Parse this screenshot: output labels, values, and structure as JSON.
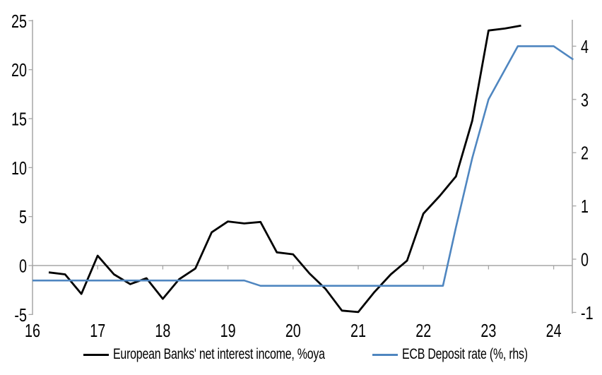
{
  "chart_data": {
    "type": "line",
    "title": "",
    "xlabel": "",
    "ylabel_left": "",
    "ylabel_right": "",
    "x_ticks": [
      16,
      17,
      18,
      19,
      20,
      21,
      22,
      23,
      24
    ],
    "x_tick_labels": [
      "16",
      "17",
      "18",
      "19",
      "20",
      "21",
      "22",
      "23",
      "24"
    ],
    "left_axis": {
      "ticks": [
        -5,
        0,
        5,
        10,
        15,
        20,
        25
      ],
      "ylim": [
        -5,
        25
      ]
    },
    "right_axis": {
      "ticks": [
        -1,
        0,
        1,
        2,
        3,
        4
      ],
      "ylim": [
        -1,
        4.5
      ]
    },
    "grid": "zero-line-only",
    "legend_position": "bottom",
    "axis_color": "#a6a6a6",
    "series": [
      {
        "key": "nii",
        "name": "European Banks' net interest income, %oya",
        "axis": "left",
        "color": "#000000",
        "width": 2.8,
        "points": [
          [
            16.25,
            -0.7
          ],
          [
            16.5,
            -0.9
          ],
          [
            16.75,
            -2.9
          ],
          [
            17.0,
            1.0
          ],
          [
            17.25,
            -0.9
          ],
          [
            17.5,
            -1.9
          ],
          [
            17.75,
            -1.3
          ],
          [
            18.0,
            -3.4
          ],
          [
            18.25,
            -1.4
          ],
          [
            18.5,
            -0.3
          ],
          [
            18.75,
            3.4
          ],
          [
            19.0,
            4.5
          ],
          [
            19.25,
            4.3
          ],
          [
            19.5,
            4.45
          ],
          [
            19.75,
            1.35
          ],
          [
            20.0,
            1.15
          ],
          [
            20.25,
            -0.8
          ],
          [
            20.5,
            -2.4
          ],
          [
            20.75,
            -4.6
          ],
          [
            21.0,
            -4.75
          ],
          [
            21.25,
            -2.7
          ],
          [
            21.5,
            -0.9
          ],
          [
            21.75,
            0.5
          ],
          [
            22.0,
            5.3
          ],
          [
            22.25,
            7.1
          ],
          [
            22.5,
            9.1
          ],
          [
            22.75,
            14.8
          ],
          [
            23.0,
            24.0
          ],
          [
            23.25,
            24.2
          ],
          [
            23.5,
            24.5
          ]
        ]
      },
      {
        "key": "deposit-rate",
        "name": "ECB Deposit rate (%, rhs)",
        "axis": "right",
        "color": "#4f86c0",
        "width": 2.6,
        "points": [
          [
            16.0,
            -0.4
          ],
          [
            19.25,
            -0.4
          ],
          [
            19.5,
            -0.5
          ],
          [
            22.3,
            -0.5
          ],
          [
            22.5,
            0.6
          ],
          [
            22.75,
            1.9
          ],
          [
            23.0,
            3.0
          ],
          [
            23.45,
            4.0
          ],
          [
            24.0,
            4.0
          ],
          [
            24.3,
            3.75
          ]
        ]
      }
    ]
  }
}
